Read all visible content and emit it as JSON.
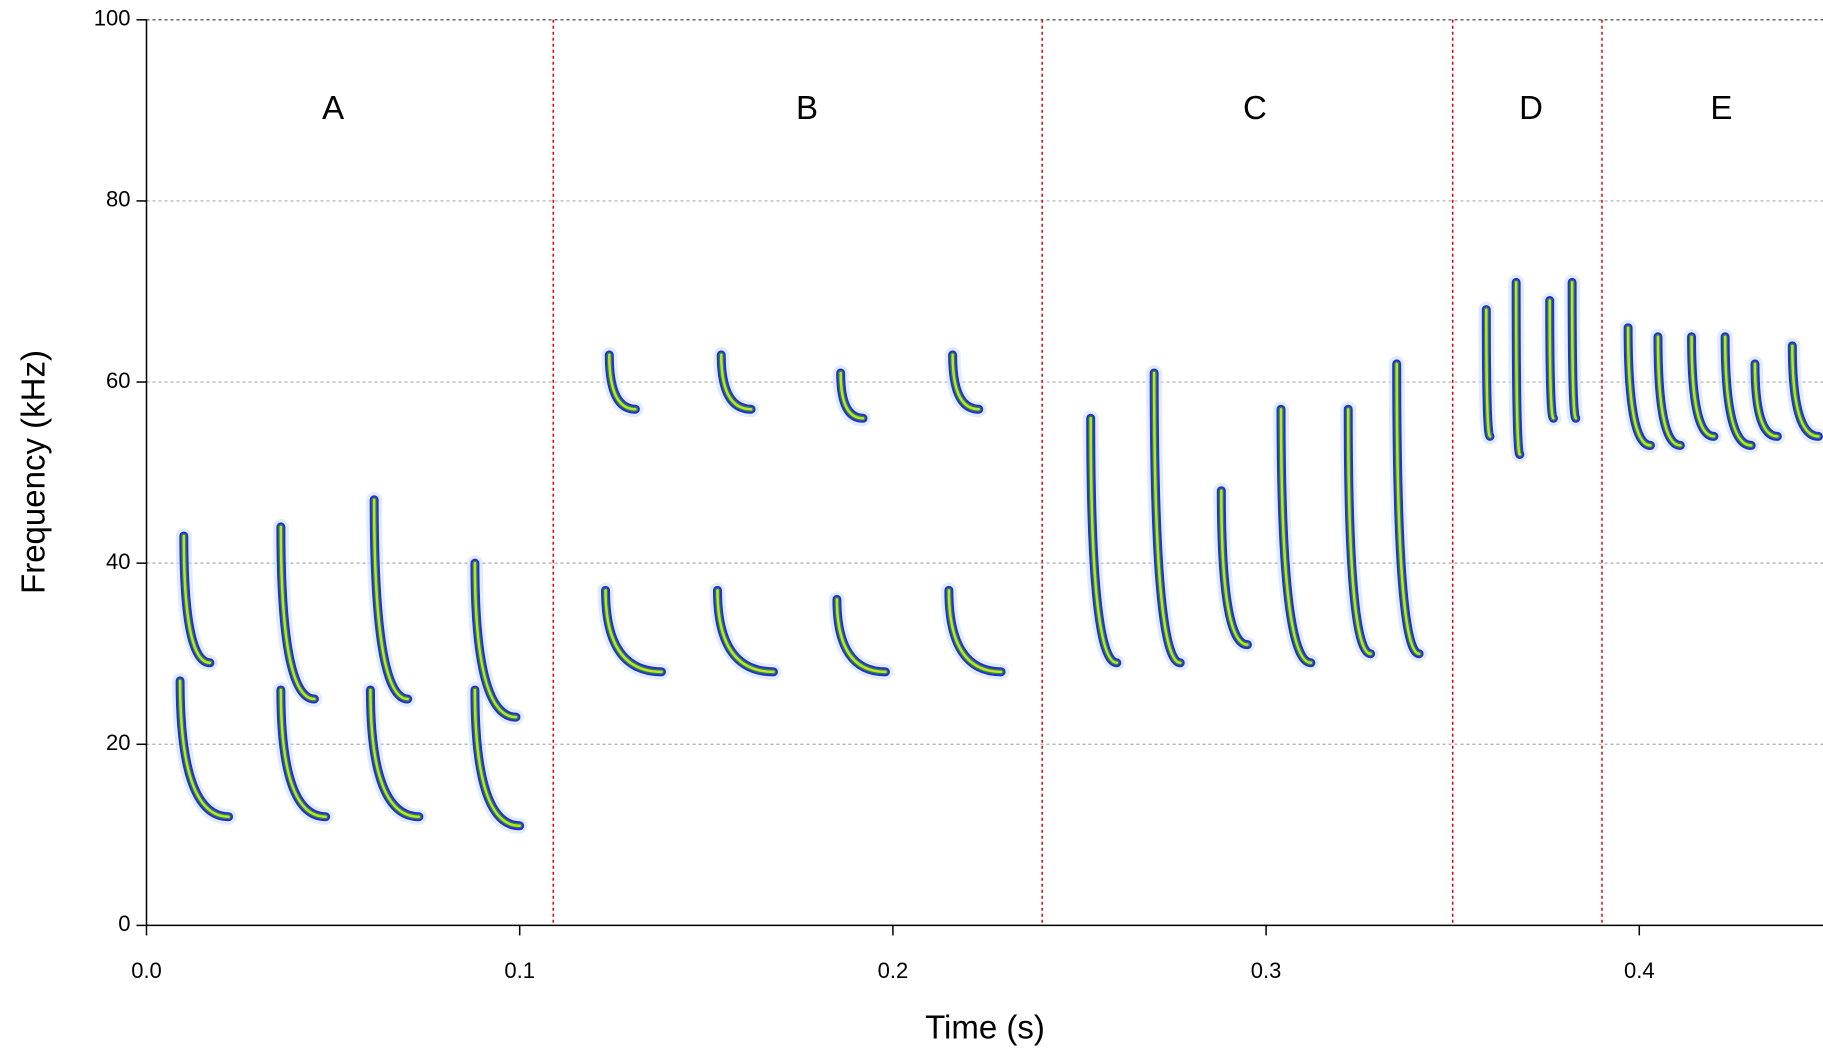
{
  "chart_data": {
    "type": "spectrogram",
    "xlabel": "Time (s)",
    "ylabel": "Frequency (kHz)",
    "xlim": [
      0,
      0.45
    ],
    "ylim": [
      0,
      100
    ],
    "xticks": [
      {
        "value": 0,
        "label": "0.0"
      },
      0.1,
      0.2,
      0.3,
      0.4
    ],
    "yticks": [
      0,
      20,
      40,
      60,
      80,
      100
    ],
    "grid": true,
    "boundaries": [
      0.109,
      0.24,
      0.35,
      0.39
    ],
    "boundary_color": "#e00000",
    "segments": [
      {
        "label": "A",
        "x": 0.05,
        "y": 90
      },
      {
        "label": "B",
        "x": 0.177,
        "y": 90
      },
      {
        "label": "C",
        "x": 0.297,
        "y": 90
      },
      {
        "label": "D",
        "x": 0.371,
        "y": 90
      },
      {
        "label": "E",
        "x": 0.422,
        "y": 90
      }
    ],
    "calls": [
      {
        "x": [
          0.009,
          0.022
        ],
        "y": [
          27,
          12
        ]
      },
      {
        "x": [
          0.036,
          0.048
        ],
        "y": [
          26,
          12
        ]
      },
      {
        "x": [
          0.06,
          0.073
        ],
        "y": [
          26,
          12
        ]
      },
      {
        "x": [
          0.088,
          0.1
        ],
        "y": [
          26,
          11
        ]
      },
      {
        "x": [
          0.01,
          0.017
        ],
        "y": [
          43,
          29
        ]
      },
      {
        "x": [
          0.036,
          0.045
        ],
        "y": [
          44,
          25
        ]
      },
      {
        "x": [
          0.061,
          0.07
        ],
        "y": [
          47,
          25
        ]
      },
      {
        "x": [
          0.088,
          0.099
        ],
        "y": [
          40,
          23
        ]
      },
      {
        "x": [
          0.123,
          0.138
        ],
        "y": [
          37,
          28
        ]
      },
      {
        "x": [
          0.153,
          0.168
        ],
        "y": [
          37,
          28
        ]
      },
      {
        "x": [
          0.185,
          0.198
        ],
        "y": [
          36,
          28
        ]
      },
      {
        "x": [
          0.215,
          0.229
        ],
        "y": [
          37,
          28
        ]
      },
      {
        "x": [
          0.124,
          0.131
        ],
        "y": [
          63,
          57
        ]
      },
      {
        "x": [
          0.154,
          0.162
        ],
        "y": [
          63,
          57
        ]
      },
      {
        "x": [
          0.186,
          0.192
        ],
        "y": [
          61,
          56
        ]
      },
      {
        "x": [
          0.216,
          0.223
        ],
        "y": [
          63,
          57
        ]
      },
      {
        "x": [
          0.253,
          0.26
        ],
        "y": [
          56,
          29
        ]
      },
      {
        "x": [
          0.27,
          0.277
        ],
        "y": [
          61,
          29
        ]
      },
      {
        "x": [
          0.288,
          0.295
        ],
        "y": [
          48,
          31
        ]
      },
      {
        "x": [
          0.304,
          0.312
        ],
        "y": [
          57,
          29
        ]
      },
      {
        "x": [
          0.322,
          0.328
        ],
        "y": [
          57,
          30
        ]
      },
      {
        "x": [
          0.335,
          0.341
        ],
        "y": [
          62,
          30
        ]
      },
      {
        "x": [
          0.359,
          0.36
        ],
        "y": [
          68,
          54
        ]
      },
      {
        "x": [
          0.367,
          0.368
        ],
        "y": [
          71,
          52
        ]
      },
      {
        "x": [
          0.376,
          0.377
        ],
        "y": [
          69,
          56
        ]
      },
      {
        "x": [
          0.382,
          0.383
        ],
        "y": [
          71,
          56
        ]
      },
      {
        "x": [
          0.397,
          0.403
        ],
        "y": [
          66,
          53
        ]
      },
      {
        "x": [
          0.405,
          0.411
        ],
        "y": [
          65,
          53
        ]
      },
      {
        "x": [
          0.414,
          0.42
        ],
        "y": [
          65,
          54
        ]
      },
      {
        "x": [
          0.423,
          0.43
        ],
        "y": [
          65,
          53
        ]
      },
      {
        "x": [
          0.431,
          0.437
        ],
        "y": [
          62,
          54
        ]
      },
      {
        "x": [
          0.441,
          0.448
        ],
        "y": [
          64,
          54
        ]
      }
    ]
  }
}
